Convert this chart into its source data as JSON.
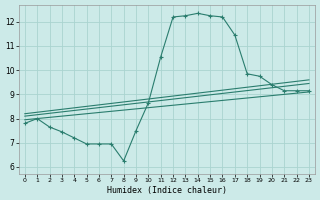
{
  "xlabel": "Humidex (Indice chaleur)",
  "bg_color": "#cceae8",
  "line_color": "#2a7d6e",
  "grid_color": "#aad4d0",
  "xlim": [
    -0.5,
    23.5
  ],
  "ylim": [
    5.7,
    12.7
  ],
  "yticks": [
    6,
    7,
    8,
    9,
    10,
    11,
    12
  ],
  "xticks": [
    0,
    1,
    2,
    3,
    4,
    5,
    6,
    7,
    8,
    9,
    10,
    11,
    12,
    13,
    14,
    15,
    16,
    17,
    18,
    19,
    20,
    21,
    22,
    23
  ],
  "curve1_x": [
    0,
    1,
    2,
    3,
    4,
    5,
    6,
    7,
    8,
    9,
    10,
    11,
    12,
    13,
    14,
    15,
    16,
    17,
    18,
    19,
    20,
    21,
    22,
    23
  ],
  "curve1_y": [
    7.8,
    8.0,
    7.65,
    7.45,
    7.2,
    6.95,
    6.95,
    6.95,
    6.25,
    7.5,
    8.65,
    10.55,
    12.2,
    12.25,
    12.35,
    12.25,
    12.2,
    11.45,
    9.85,
    9.75,
    9.4,
    9.15,
    9.15,
    9.15
  ],
  "curve2_x": [
    0,
    23
  ],
  "curve2_y": [
    7.95,
    9.1
  ],
  "curve3_x": [
    0,
    23
  ],
  "curve3_y": [
    8.1,
    9.45
  ],
  "curve4_x": [
    0,
    23
  ],
  "curve4_y": [
    8.2,
    9.6
  ]
}
